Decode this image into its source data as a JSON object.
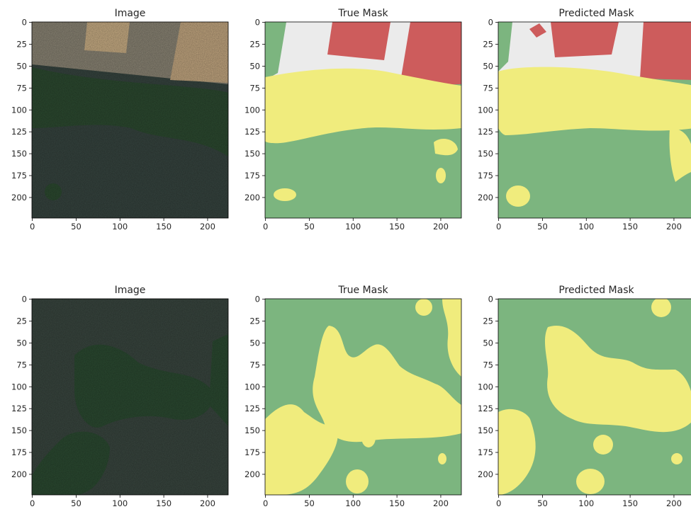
{
  "figure": {
    "panels": [
      {
        "title": "Image",
        "kind": "photo",
        "scene": "buildings-top"
      },
      {
        "title": "True Mask",
        "kind": "mask",
        "scene": "buildings-top"
      },
      {
        "title": "Predicted Mask",
        "kind": "mask",
        "scene": "buildings-top"
      },
      {
        "title": "Image",
        "kind": "photo",
        "scene": "vegetation"
      },
      {
        "title": "True Mask",
        "kind": "mask",
        "scene": "vegetation"
      },
      {
        "title": "Predicted Mask",
        "kind": "mask",
        "scene": "vegetation"
      }
    ],
    "x_ticks": [
      "0",
      "50",
      "100",
      "150",
      "200"
    ],
    "y_ticks": [
      "0",
      "25",
      "50",
      "75",
      "100",
      "125",
      "150",
      "175",
      "200"
    ],
    "x_tick_values": [
      0,
      50,
      100,
      150,
      200
    ],
    "y_tick_values": [
      0,
      25,
      50,
      75,
      100,
      125,
      150,
      175,
      200
    ],
    "image_size": [
      224,
      224
    ]
  },
  "colors": {
    "mask_ground": "#7cb57f",
    "mask_vegetation": "#f0ec7d",
    "mask_building": "#cd5c5c",
    "mask_pavement": "#ebebeb",
    "photo_ground": "#36443f",
    "photo_trees": "#2c4a30",
    "photo_roof": "#c2a680",
    "photo_concrete": "#8a8474"
  }
}
